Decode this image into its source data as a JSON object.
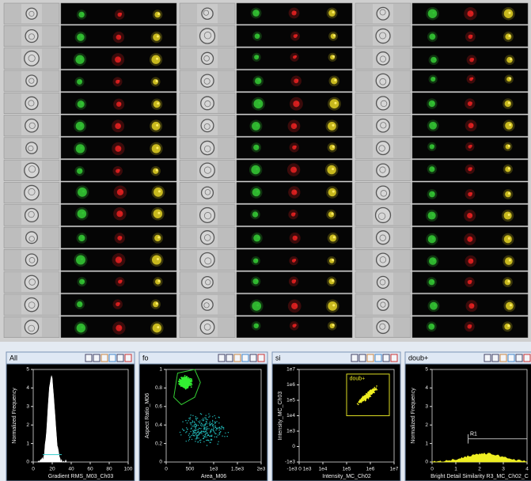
{
  "panels": [
    {
      "title": "All",
      "y_label": "Normalized Frequency",
      "x_label": "Gradient RMS_M03_Ch03",
      "y_ticks": [
        "0",
        "1",
        "2",
        "3",
        "4",
        "5"
      ],
      "x_ticks": [
        "0",
        "20",
        "40",
        "60",
        "80",
        "100"
      ]
    },
    {
      "title": "fo",
      "y_label": "Aspect Ratio_M06",
      "x_label": "Area_M06",
      "y_ticks": [
        "0",
        "0.2",
        "0.4",
        "0.6",
        "0.8",
        "1"
      ],
      "x_ticks": [
        "0",
        "500",
        "1e3",
        "1.5e3",
        "2e3"
      ]
    },
    {
      "title": "si",
      "y_label": "Intensity_MC_Ch03",
      "x_label": "Intensity_MC_Ch02",
      "y_ticks": [
        "-1e3",
        "0",
        "1e3",
        "1e4",
        "1e5",
        "1e6",
        "1e7"
      ],
      "x_ticks": [
        "-1e3 0 1e3",
        "1e4",
        "1e5",
        "1e6",
        "1e7"
      ],
      "gate_label": "doub+"
    },
    {
      "title": "doub+",
      "y_label": "Normalized Frequency",
      "x_label": "Bright Detail Similarity R3_MC_Ch02_C",
      "y_ticks": [
        "0",
        "1",
        "2",
        "3",
        "4",
        "5"
      ],
      "x_ticks": [
        "0",
        "1",
        "2",
        "3",
        "4"
      ],
      "gate_label": "R1"
    }
  ]
}
